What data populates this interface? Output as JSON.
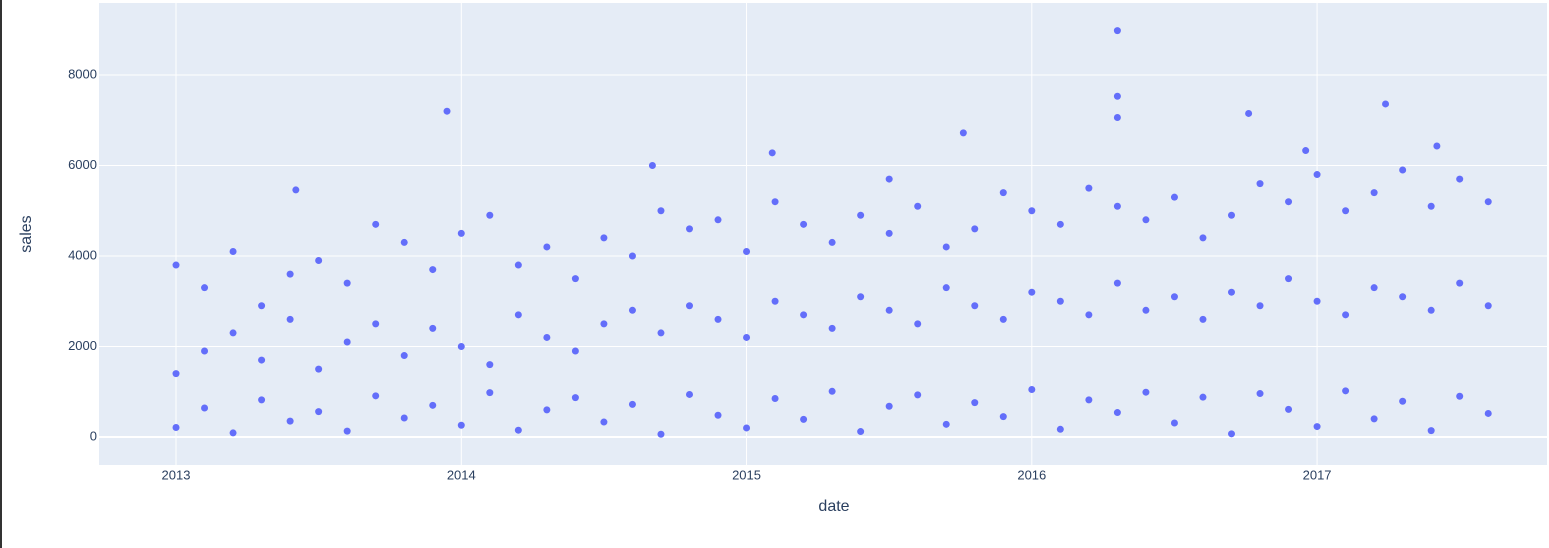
{
  "chart_data": {
    "type": "scatter",
    "x_label": "date",
    "y_label": "sales",
    "color": "#636efa",
    "grid": true,
    "xlim": [
      2012.73,
      2017.806
    ],
    "xticks": [
      2013,
      2014,
      2015,
      2016,
      2017
    ],
    "ylim": [
      -619,
      9591
    ],
    "yticks": [
      0,
      2000,
      4000,
      6000,
      8000
    ],
    "x": [
      2013.0,
      2013.1,
      2013.2,
      2013.3,
      2013.4,
      2013.5,
      2013.6,
      2013.7,
      2013.8,
      2013.9,
      2014.0,
      2014.1,
      2014.2,
      2014.3,
      2014.4,
      2014.5,
      2014.6,
      2014.7,
      2014.8,
      2014.9,
      2015.0,
      2015.1,
      2015.2,
      2015.3,
      2015.4,
      2015.5,
      2015.6,
      2015.7,
      2015.8,
      2015.9,
      2016.0,
      2016.1,
      2016.2,
      2016.3,
      2016.4,
      2016.5,
      2016.6,
      2016.7,
      2016.8,
      2016.9,
      2017.0,
      2017.1,
      2017.2,
      2017.3,
      2017.4,
      2017.5,
      2017.6,
      2013.0,
      2013.1,
      2013.2,
      2013.3,
      2013.4,
      2013.5,
      2013.6,
      2013.7,
      2013.8,
      2013.9,
      2014.0,
      2014.1,
      2014.2,
      2014.3,
      2014.4,
      2014.5,
      2014.6,
      2014.7,
      2014.8,
      2014.9,
      2015.0,
      2015.1,
      2015.2,
      2015.3,
      2015.4,
      2015.5,
      2015.6,
      2015.7,
      2015.8,
      2015.9,
      2016.0,
      2016.1,
      2016.2,
      2016.3,
      2016.4,
      2016.5,
      2016.6,
      2016.7,
      2016.8,
      2016.9,
      2017.0,
      2017.1,
      2017.2,
      2017.3,
      2017.4,
      2017.5,
      2017.6,
      2013.0,
      2013.1,
      2013.2,
      2013.3,
      2013.4,
      2013.5,
      2013.6,
      2013.7,
      2013.8,
      2013.9,
      2014.0,
      2014.1,
      2014.2,
      2014.3,
      2014.4,
      2014.5,
      2014.6,
      2014.7,
      2014.8,
      2014.9,
      2015.0,
      2015.1,
      2015.2,
      2015.3,
      2015.4,
      2015.5,
      2015.6,
      2015.7,
      2015.8,
      2015.9,
      2016.0,
      2016.1,
      2016.2,
      2016.3,
      2016.4,
      2016.5,
      2016.6,
      2016.7,
      2016.8,
      2016.9,
      2017.0,
      2017.1,
      2017.2,
      2017.3,
      2017.4,
      2017.5,
      2017.6,
      2013.95,
      2016.3,
      2016.3,
      2016.3,
      2016.76,
      2017.24,
      2015.76,
      2017.42,
      2015.09,
      2014.67,
      2013.42,
      2016.96,
      2015.5
    ],
    "values": [
      210,
      640,
      90,
      820,
      350,
      560,
      130,
      910,
      420,
      700,
      260,
      980,
      150,
      600,
      870,
      330,
      720,
      60,
      940,
      480,
      200,
      850,
      390,
      1010,
      120,
      680,
      930,
      280,
      760,
      450,
      1050,
      170,
      820,
      540,
      990,
      310,
      880,
      70,
      960,
      610,
      230,
      1020,
      400,
      790,
      140,
      900,
      520,
      1400,
      1900,
      2300,
      1700,
      2600,
      1500,
      2100,
      2500,
      1800,
      2400,
      2000,
      1600,
      2700,
      2200,
      1900,
      2500,
      2800,
      2300,
      2900,
      2600,
      2200,
      3000,
      2700,
      2400,
      3100,
      2800,
      2500,
      3300,
      2900,
      2600,
      3200,
      3000,
      2700,
      3400,
      2800,
      3100,
      2600,
      3200,
      2900,
      3500,
      3000,
      2700,
      3300,
      3100,
      2800,
      3400,
      2900,
      3800,
      3300,
      4100,
      2900,
      3600,
      3900,
      3400,
      4700,
      4300,
      3700,
      4500,
      4900,
      3800,
      4200,
      3500,
      4400,
      4000,
      5000,
      4600,
      4800,
      4100,
      5200,
      4700,
      4300,
      4900,
      4500,
      5100,
      4200,
      4600,
      5400,
      5000,
      4700,
      5500,
      5100,
      4800,
      5300,
      4400,
      4900,
      5600,
      5200,
      5800,
      5000,
      5400,
      5900,
      5100,
      5700,
      5200,
      7200,
      8980,
      7530,
      7060,
      7150,
      7360,
      6720,
      6430,
      6280,
      6000,
      5460,
      6330,
      5700
    ]
  }
}
